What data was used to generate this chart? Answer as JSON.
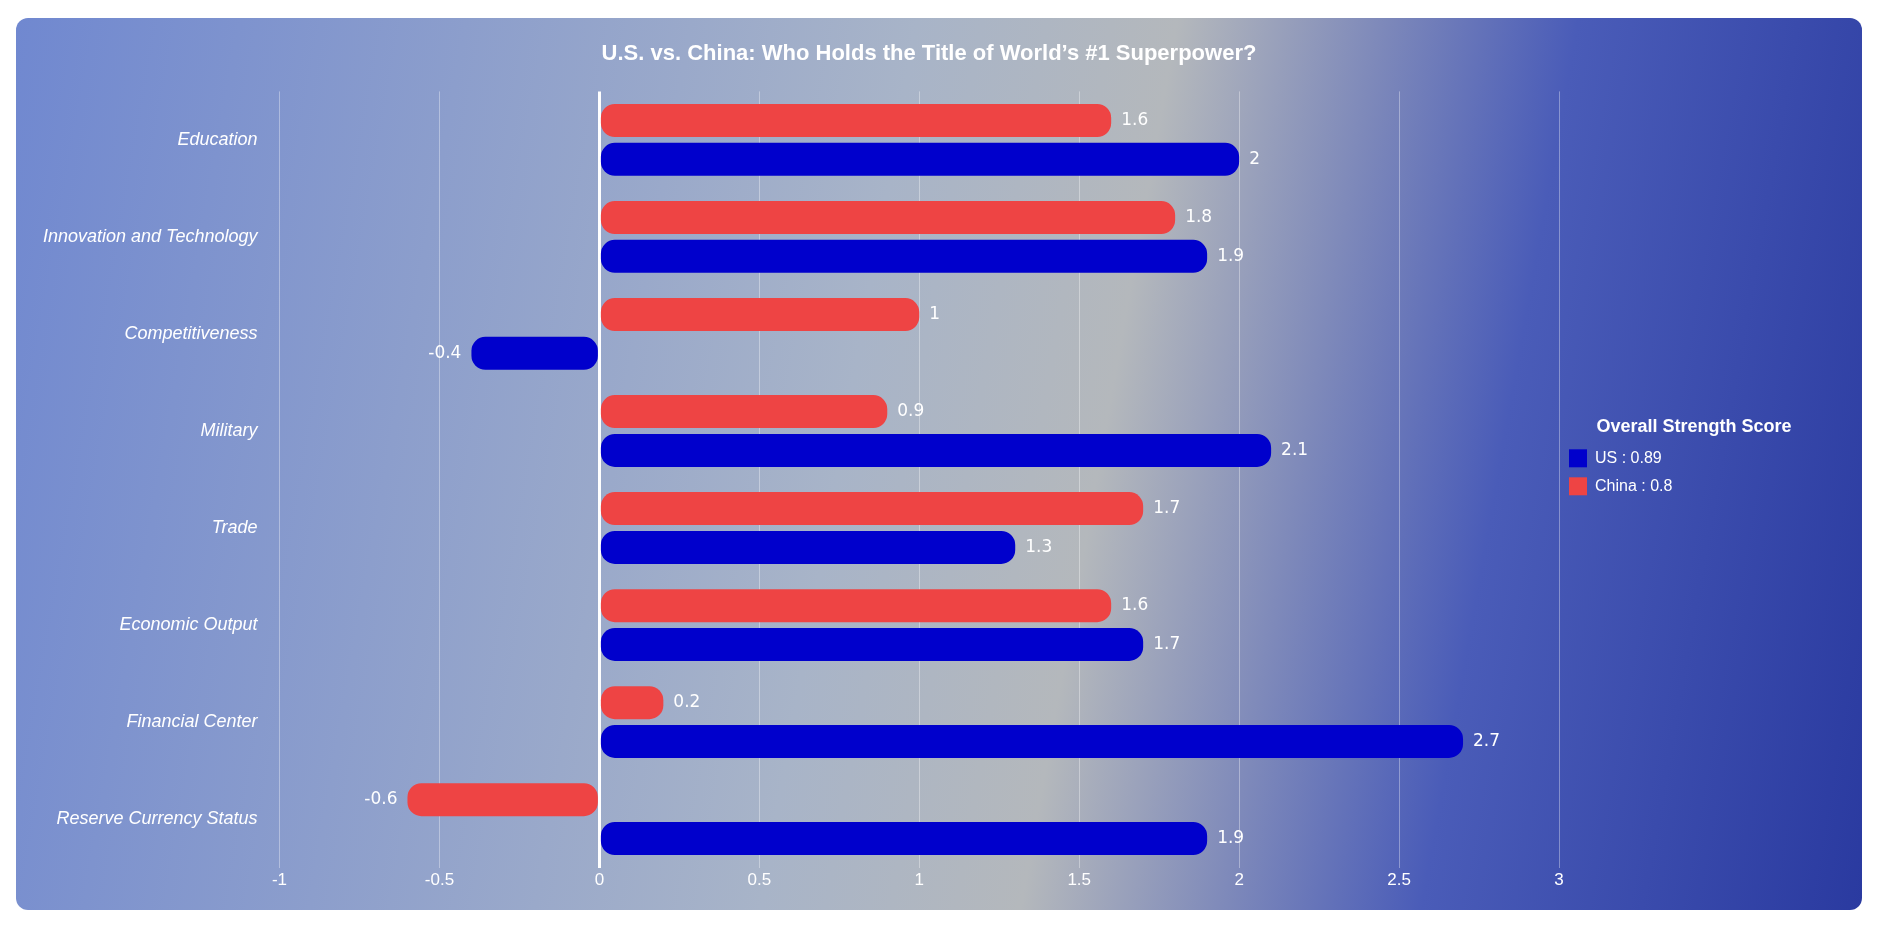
{
  "chart_data": {
    "type": "bar",
    "orientation": "horizontal",
    "title": "U.S. vs. China: Who Holds the Title of World’s #1 Superpower?",
    "categories": [
      "Education",
      "Innovation and Technology",
      "Competitiveness",
      "Military",
      "Trade",
      "Economic Output",
      "Financial Center",
      "Reserve Currency Status"
    ],
    "series": [
      {
        "name": "China : 0.8",
        "color": "#ee4444",
        "values": [
          1.6,
          1.8,
          1,
          0.9,
          1.7,
          1.6,
          0.2,
          -0.6
        ]
      },
      {
        "name": "US : 0.89",
        "color": "#0000cc",
        "values": [
          2,
          1.9,
          -0.4,
          2.1,
          1.3,
          1.7,
          2.7,
          1.9
        ]
      }
    ],
    "xlim": [
      -1,
      3
    ],
    "xticks": [
      -1,
      -0.5,
      0,
      0.5,
      1,
      1.5,
      2,
      2.5,
      3
    ],
    "grid": "x",
    "legend": "right",
    "legend_title": "Overall Strength Score",
    "data_labels": true
  }
}
